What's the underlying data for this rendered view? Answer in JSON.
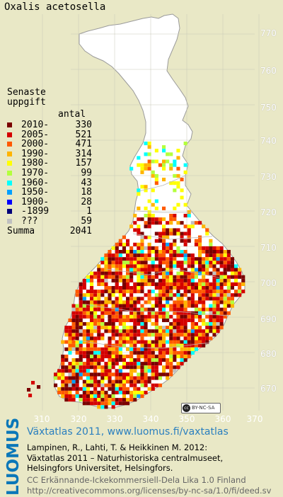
{
  "map": {
    "species": "Oxalis acetosella",
    "y_labels": [
      "770",
      "760",
      "750",
      "740",
      "730",
      "720",
      "710",
      "700",
      "690",
      "680",
      "670"
    ],
    "x_labels": [
      "310",
      "320",
      "330",
      "340",
      "350",
      "360",
      "370"
    ],
    "land_color": "#ffffff",
    "background_color": "#e9e8c6",
    "grid_color": "#c8c8b8",
    "border_color": "#b0b0b0"
  },
  "legend": {
    "title_line1": "Senaste",
    "title_line2": "uppgift",
    "count_header": "antal",
    "items": [
      {
        "label": "2010-",
        "count": "330",
        "color": "#7a0000"
      },
      {
        "label": "2005-",
        "count": "521",
        "color": "#d40000"
      },
      {
        "label": "2000-",
        "count": "471",
        "color": "#ff5a00"
      },
      {
        "label": "1990-",
        "count": "314",
        "color": "#ffb400"
      },
      {
        "label": "1980-",
        "count": "157",
        "color": "#ffff00"
      },
      {
        "label": "1970-",
        "count": "99",
        "color": "#b4ff3c"
      },
      {
        "label": "1960-",
        "count": "43",
        "color": "#00ffff"
      },
      {
        "label": "1950-",
        "count": "18",
        "color": "#00a0ff"
      },
      {
        "label": "1900-",
        "count": "28",
        "color": "#0000ff"
      },
      {
        "label": "-1899",
        "count": "1",
        "color": "#00007a"
      },
      {
        "label": "???",
        "count": "59",
        "color": "#c0c0c0"
      }
    ],
    "sum_label": "Summa",
    "sum_value": "2041"
  },
  "license_badge": {
    "cc": "cc",
    "text": "BY-NC-SA"
  },
  "footer": {
    "logo": "LUOMUS",
    "line1": "Växtatlas 2011, www.luomus.fi/vaxtatlas",
    "line2": "Lampinen, R., Lahti, T. & Heikkinen M. 2012:",
    "line3": "Växtatlas 2011 – Naturhistoriska centralmuseet,",
    "line4": "Helsingfors Universitet, Helsingfors.",
    "line5": "CC Erkännande-Ickekommersiell-Dela Lika 1.0 Finland",
    "line6": "http://creativecommons.org/licenses/by-nc-sa/1.0/fi/deed.sv",
    "logo_color": "#0a77b8",
    "link_color": "#2a7fbf"
  }
}
